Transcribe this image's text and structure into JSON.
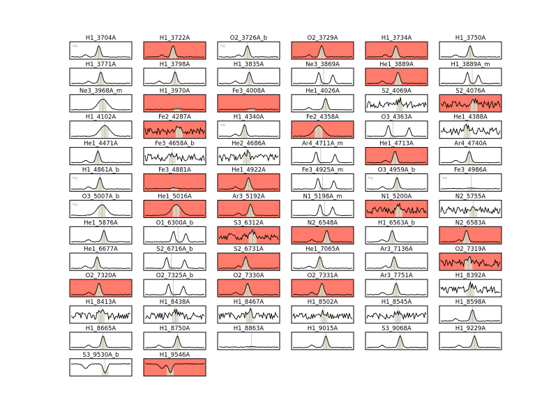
{
  "chart_data": {
    "type": "line",
    "layout": "small-multiples grid, 6 columns x 13 rows",
    "flagged_color": "#ff7b6b",
    "normal_color": "#ffffff",
    "line_color": "#000000",
    "fill_color": "#d8dcc4",
    "marker_color": "#aaaaaa",
    "log_label": "log",
    "panels": [
      {
        "title": "H1_3704A",
        "flagged": false,
        "shape": "single",
        "log": true
      },
      {
        "title": "H1_3722A",
        "flagged": true,
        "shape": "single",
        "log": true
      },
      {
        "title": "O2_3726A_b",
        "flagged": false,
        "shape": "single",
        "log": true
      },
      {
        "title": "O2_3729A",
        "flagged": true,
        "shape": "single",
        "log": true
      },
      {
        "title": "H1_3734A",
        "flagged": true,
        "shape": "single",
        "log": true
      },
      {
        "title": "H1_3750A",
        "flagged": false,
        "shape": "single",
        "log": false
      },
      {
        "title": "H1_3771A",
        "flagged": false,
        "shape": "single",
        "log": false
      },
      {
        "title": "H1_3798A",
        "flagged": false,
        "shape": "single",
        "log": false
      },
      {
        "title": "H1_3835A",
        "flagged": false,
        "shape": "single",
        "log": false
      },
      {
        "title": "Ne3_3869A",
        "flagged": false,
        "shape": "double",
        "log": false
      },
      {
        "title": "He1_3889A",
        "flagged": true,
        "shape": "single",
        "log": false
      },
      {
        "title": "H1_3889A_m",
        "flagged": false,
        "shape": "double",
        "log": false
      },
      {
        "title": "Ne3_3968A_m",
        "flagged": false,
        "shape": "broad",
        "log": false
      },
      {
        "title": "H1_3970A",
        "flagged": true,
        "shape": "flat",
        "log": false
      },
      {
        "title": "Fe3_4008A",
        "flagged": true,
        "shape": "flat",
        "log": false
      },
      {
        "title": "He1_4026A",
        "flagged": false,
        "shape": "single",
        "log": false
      },
      {
        "title": "S2_4069A",
        "flagged": false,
        "shape": "noisy",
        "log": false
      },
      {
        "title": "S2_4076A",
        "flagged": true,
        "shape": "noisy",
        "log": false
      },
      {
        "title": "H1_4102A",
        "flagged": false,
        "shape": "broad",
        "log": false
      },
      {
        "title": "Fe2_4287A",
        "flagged": true,
        "shape": "noisy",
        "log": false
      },
      {
        "title": "H1_4340A",
        "flagged": false,
        "shape": "single",
        "log": true
      },
      {
        "title": "Fe2_4358A",
        "flagged": true,
        "shape": "broad",
        "log": true
      },
      {
        "title": "O3_4363A",
        "flagged": false,
        "shape": "double",
        "log": false
      },
      {
        "title": "He1_4388A",
        "flagged": false,
        "shape": "noisy",
        "log": false
      },
      {
        "title": "He1_4471A",
        "flagged": false,
        "shape": "single",
        "log": false
      },
      {
        "title": "Fe3_4658A_b",
        "flagged": false,
        "shape": "noisy",
        "log": false
      },
      {
        "title": "He2_4686A",
        "flagged": false,
        "shape": "noisy",
        "log": false
      },
      {
        "title": "Ar4_4711A_m",
        "flagged": false,
        "shape": "double",
        "log": false
      },
      {
        "title": "He1_4713A",
        "flagged": true,
        "shape": "single",
        "log": false
      },
      {
        "title": "Ar4_4740A",
        "flagged": false,
        "shape": "single",
        "log": false
      },
      {
        "title": "H1_4861A_b",
        "flagged": false,
        "shape": "single",
        "log": true
      },
      {
        "title": "Fe3_4881A",
        "flagged": true,
        "shape": "flat",
        "log": false
      },
      {
        "title": "He1_4922A",
        "flagged": true,
        "shape": "single",
        "log": false
      },
      {
        "title": "Fe3_4925A_m",
        "flagged": false,
        "shape": "double",
        "log": false
      },
      {
        "title": "O3_4959A_b",
        "flagged": false,
        "shape": "single",
        "log": true
      },
      {
        "title": "Fe3_4986A",
        "flagged": false,
        "shape": "flat",
        "log": true
      },
      {
        "title": "O3_5007A_b",
        "flagged": false,
        "shape": "broad",
        "log": true
      },
      {
        "title": "He1_5016A",
        "flagged": true,
        "shape": "broad",
        "log": true
      },
      {
        "title": "Ar3_5192A",
        "flagged": true,
        "shape": "single",
        "log": false
      },
      {
        "title": "N1_5198A_m",
        "flagged": false,
        "shape": "double",
        "log": false
      },
      {
        "title": "N1_5200A",
        "flagged": true,
        "shape": "noisy",
        "log": false
      },
      {
        "title": "N2_5755A",
        "flagged": false,
        "shape": "noisy",
        "log": false
      },
      {
        "title": "He1_5876A",
        "flagged": false,
        "shape": "single",
        "log": false
      },
      {
        "title": "O1_6300A_b",
        "flagged": false,
        "shape": "double",
        "log": false
      },
      {
        "title": "S3_6312A",
        "flagged": true,
        "shape": "noisy",
        "log": false
      },
      {
        "title": "N2_6548A",
        "flagged": true,
        "shape": "single",
        "log": false
      },
      {
        "title": "H1_6563A_b",
        "flagged": false,
        "shape": "single",
        "log": false
      },
      {
        "title": "N2_6583A",
        "flagged": true,
        "shape": "single",
        "log": false
      },
      {
        "title": "He1_6677A",
        "flagged": false,
        "shape": "single",
        "log": false
      },
      {
        "title": "S2_6716A_b",
        "flagged": false,
        "shape": "double",
        "log": false
      },
      {
        "title": "S2_6731A",
        "flagged": true,
        "shape": "single",
        "log": false
      },
      {
        "title": "He1_7065A",
        "flagged": false,
        "shape": "single",
        "log": false
      },
      {
        "title": "Ar3_7136A",
        "flagged": false,
        "shape": "single",
        "log": false
      },
      {
        "title": "O2_7319A",
        "flagged": true,
        "shape": "noisy",
        "log": false
      },
      {
        "title": "O2_7320A",
        "flagged": true,
        "shape": "single",
        "log": false
      },
      {
        "title": "O2_7325A_b",
        "flagged": false,
        "shape": "double",
        "log": false
      },
      {
        "title": "O2_7330A",
        "flagged": true,
        "shape": "single",
        "log": false
      },
      {
        "title": "O2_7331A",
        "flagged": true,
        "shape": "single",
        "log": false
      },
      {
        "title": "Ar3_7751A",
        "flagged": false,
        "shape": "single",
        "log": false
      },
      {
        "title": "H1_8392A",
        "flagged": false,
        "shape": "noisy",
        "log": false
      },
      {
        "title": "H1_8413A",
        "flagged": false,
        "shape": "noisy",
        "log": false
      },
      {
        "title": "H1_8438A",
        "flagged": false,
        "shape": "noisy",
        "log": false
      },
      {
        "title": "H1_8467A",
        "flagged": false,
        "shape": "noisy",
        "log": false
      },
      {
        "title": "H1_8502A",
        "flagged": false,
        "shape": "noisy",
        "log": false
      },
      {
        "title": "H1_8545A",
        "flagged": false,
        "shape": "noisy",
        "log": false
      },
      {
        "title": "H1_8598A",
        "flagged": false,
        "shape": "single",
        "log": false
      },
      {
        "title": "H1_8665A",
        "flagged": false,
        "shape": "single",
        "log": false
      },
      {
        "title": "H1_8750A",
        "flagged": false,
        "shape": "single",
        "log": false
      },
      {
        "title": "H1_8863A",
        "flagged": false,
        "shape": "flat",
        "log": false
      },
      {
        "title": "H1_9015A",
        "flagged": false,
        "shape": "single",
        "log": false
      },
      {
        "title": "S3_9068A",
        "flagged": false,
        "shape": "single",
        "log": false
      },
      {
        "title": "H1_9229A",
        "flagged": false,
        "shape": "single",
        "log": false
      },
      {
        "title": "S3_9530A_b",
        "flagged": false,
        "shape": "absorption",
        "log": false
      },
      {
        "title": "H1_9546A",
        "flagged": true,
        "shape": "absorption",
        "log": false
      }
    ]
  }
}
